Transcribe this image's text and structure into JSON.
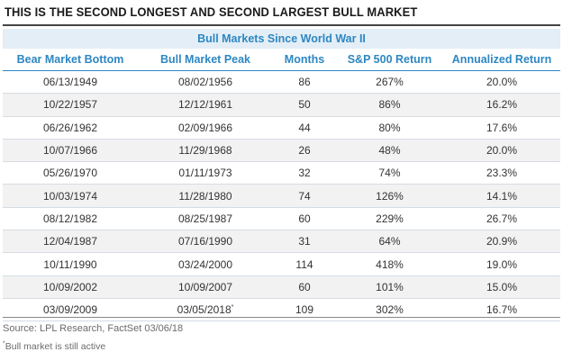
{
  "title": "THIS IS THE SECOND LONGEST AND SECOND LARGEST BULL MARKET",
  "chart_data": {
    "type": "table",
    "title": "THIS IS THE SECOND LONGEST AND SECOND LARGEST BULL MARKET",
    "table_title": "Bull Markets Since World War II",
    "columns": [
      "Bear Market Bottom",
      "Bull Market Peak",
      "Months",
      "S&P 500 Return",
      "Annualized Return"
    ],
    "rows": [
      {
        "bottom": "06/13/1949",
        "peak": "08/02/1956",
        "peak_mark": "",
        "months": "86",
        "sp_return": "267%",
        "annualized": "20.0%"
      },
      {
        "bottom": "10/22/1957",
        "peak": "12/12/1961",
        "peak_mark": "",
        "months": "50",
        "sp_return": "86%",
        "annualized": "16.2%"
      },
      {
        "bottom": "06/26/1962",
        "peak": "02/09/1966",
        "peak_mark": "",
        "months": "44",
        "sp_return": "80%",
        "annualized": "17.6%"
      },
      {
        "bottom": "10/07/1966",
        "peak": "11/29/1968",
        "peak_mark": "",
        "months": "26",
        "sp_return": "48%",
        "annualized": "20.0%"
      },
      {
        "bottom": "05/26/1970",
        "peak": "01/11/1973",
        "peak_mark": "",
        "months": "32",
        "sp_return": "74%",
        "annualized": "23.3%"
      },
      {
        "bottom": "10/03/1974",
        "peak": "11/28/1980",
        "peak_mark": "",
        "months": "74",
        "sp_return": "126%",
        "annualized": "14.1%"
      },
      {
        "bottom": "08/12/1982",
        "peak": "08/25/1987",
        "peak_mark": "",
        "months": "60",
        "sp_return": "229%",
        "annualized": "26.7%"
      },
      {
        "bottom": "12/04/1987",
        "peak": "07/16/1990",
        "peak_mark": "",
        "months": "31",
        "sp_return": "64%",
        "annualized": "20.9%"
      },
      {
        "bottom": "10/11/1990",
        "peak": "03/24/2000",
        "peak_mark": "",
        "months": "114",
        "sp_return": "418%",
        "annualized": "19.0%"
      },
      {
        "bottom": "10/09/2002",
        "peak": "10/09/2007",
        "peak_mark": "",
        "months": "60",
        "sp_return": "101%",
        "annualized": "15.0%"
      },
      {
        "bottom": "03/09/2009",
        "peak": "03/05/2018",
        "peak_mark": "*",
        "months": "109",
        "sp_return": "302%",
        "annualized": "16.7%"
      }
    ]
  },
  "footer": {
    "source": "Source: LPL Research, FactSet 03/06/18",
    "note_mark": "*",
    "note_text": "Bull market is still active"
  },
  "colors": {
    "accent": "#2d87c2",
    "band": "#e3eef6",
    "row_alt": "#f2f2f2"
  }
}
